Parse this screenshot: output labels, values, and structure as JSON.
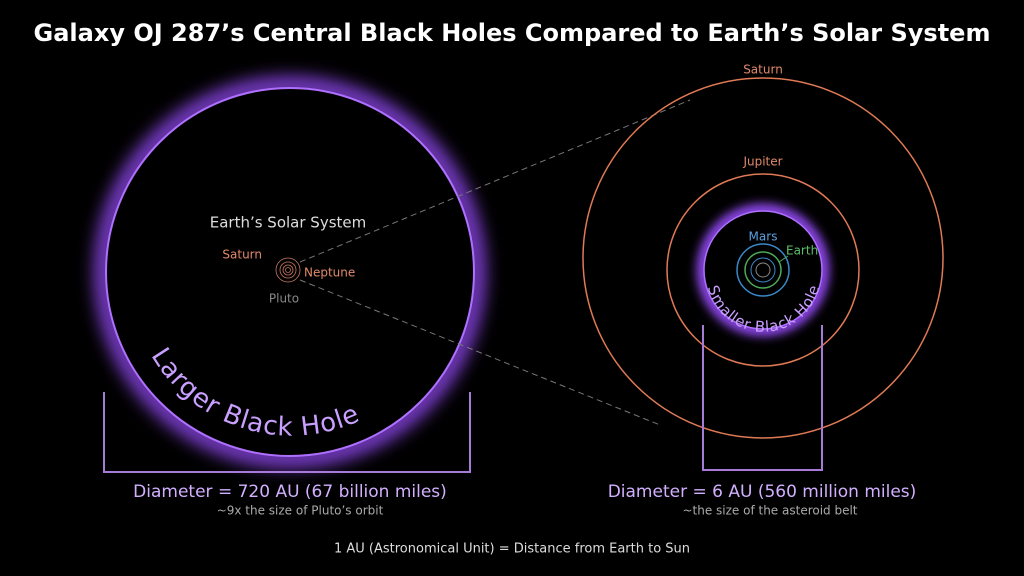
{
  "title": "Galaxy OJ 287’s Central Black Holes Compared to Earth’s Solar System",
  "left": {
    "solar_system_label": "Earth’s Solar System",
    "saturn": "Saturn",
    "neptune": "Neptune",
    "pluto": "Pluto",
    "black_hole_label": "Larger Black Hole",
    "diameter": "Diameter = 720 AU (67 billion miles)",
    "note": "~9x the size of Pluto’s orbit"
  },
  "right": {
    "saturn": "Saturn",
    "jupiter": "Jupiter",
    "mars": "Mars",
    "earth": "Earth",
    "black_hole_label": "Smaller Black Hole",
    "diameter": "Diameter = 6 AU (560 million miles)",
    "note": "~the size of the asteroid belt"
  },
  "footnote": "1 AU (Astronomical Unit) = Distance from Earth to Sun"
}
